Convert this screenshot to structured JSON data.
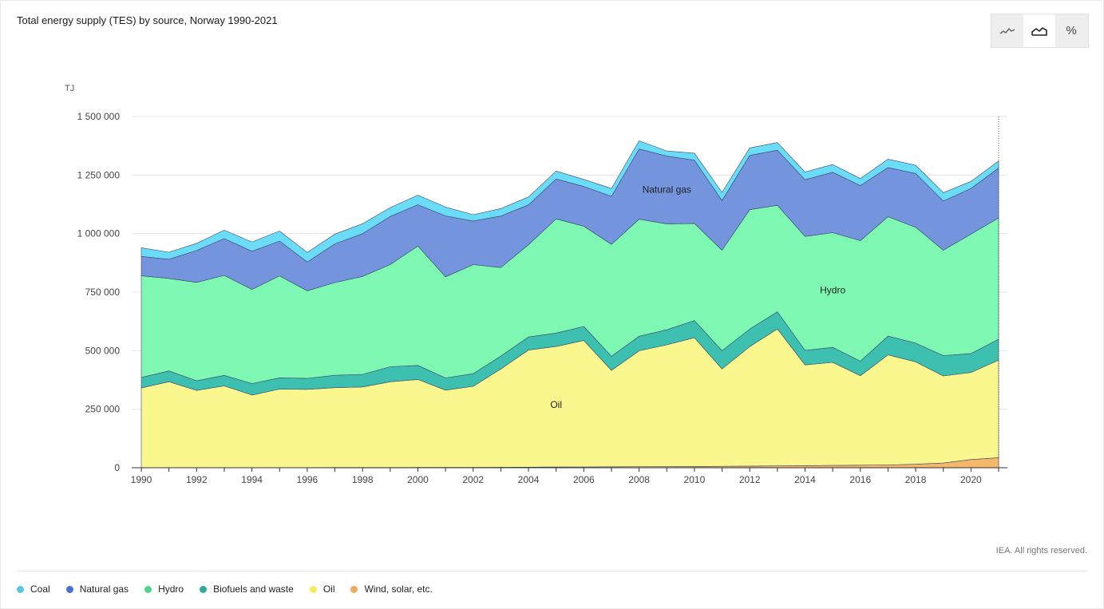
{
  "title": "Total energy supply (TES) by source, Norway 1990-2021",
  "credit": "IEA. All rights reserved.",
  "view_buttons": [
    {
      "icon": "line-chart-icon",
      "active": false
    },
    {
      "icon": "area-chart-icon",
      "active": true
    },
    {
      "icon": "percent-icon",
      "glyph": "%",
      "active": false
    }
  ],
  "chart_data": {
    "type": "area",
    "stacked": true,
    "title": "Total energy supply (TES) by source, Norway 1990-2021",
    "ylabel": "TJ",
    "xlabel": "",
    "ylim": [
      0,
      1500000
    ],
    "yticks": [
      0,
      250000,
      500000,
      750000,
      1000000,
      1250000,
      1500000
    ],
    "ytick_labels": [
      "0",
      "250 000",
      "500 000",
      "750 000",
      "1 000 000",
      "1 250 000",
      "1 500 000"
    ],
    "xticks": [
      1990,
      1992,
      1994,
      1996,
      1998,
      2000,
      2002,
      2004,
      2006,
      2008,
      2010,
      2012,
      2014,
      2016,
      2018,
      2020
    ],
    "x": [
      1990,
      1991,
      1992,
      1993,
      1994,
      1995,
      1996,
      1997,
      1998,
      1999,
      2000,
      2001,
      2002,
      2003,
      2004,
      2005,
      2006,
      2007,
      2008,
      2009,
      2010,
      2011,
      2012,
      2013,
      2014,
      2015,
      2016,
      2017,
      2018,
      2019,
      2020,
      2021
    ],
    "grid": true,
    "legend_position": "bottom",
    "series": [
      {
        "name": "Wind, solar, etc.",
        "color": "#f5b86a",
        "values": [
          500,
          500,
          500,
          600,
          600,
          700,
          800,
          900,
          1000,
          1100,
          1200,
          1400,
          1600,
          2000,
          2500,
          3000,
          3500,
          4000,
          4500,
          5000,
          5500,
          6000,
          7000,
          8000,
          9000,
          10000,
          11000,
          12000,
          15000,
          20000,
          35000,
          43000
        ]
      },
      {
        "name": "Oil",
        "color": "#faf78e",
        "values": [
          340000,
          367000,
          330000,
          349000,
          310000,
          335000,
          334000,
          341000,
          344000,
          366000,
          376000,
          330000,
          346000,
          420000,
          500000,
          515000,
          540000,
          412000,
          495000,
          520000,
          550000,
          416000,
          510000,
          585000,
          430000,
          440000,
          382000,
          470000,
          437000,
          372000,
          372000,
          417000
        ]
      },
      {
        "name": "Biofuels and waste",
        "color": "#3ec0b0",
        "values": [
          45000,
          46000,
          41000,
          45000,
          49000,
          48000,
          47000,
          53000,
          54000,
          64000,
          60000,
          52000,
          54000,
          55000,
          56000,
          57000,
          60000,
          60000,
          62000,
          64000,
          73000,
          78000,
          75000,
          73000,
          62000,
          64000,
          62000,
          80000,
          80000,
          87000,
          81000,
          89000
        ]
      },
      {
        "name": "Hydro",
        "color": "#7ef7b2",
        "values": [
          434000,
          395000,
          420000,
          427000,
          402000,
          436000,
          374000,
          396000,
          418000,
          437000,
          510000,
          432000,
          466000,
          378000,
          394000,
          488000,
          428000,
          478000,
          500000,
          452000,
          415000,
          429000,
          510000,
          455000,
          487000,
          490000,
          515000,
          510000,
          495000,
          450000,
          510000,
          518000
        ]
      },
      {
        "name": "Natural gas",
        "color": "#7495dd",
        "values": [
          83000,
          82000,
          136000,
          157000,
          163000,
          148000,
          123000,
          165000,
          183000,
          205000,
          176000,
          260000,
          186000,
          220000,
          170000,
          170000,
          170000,
          205000,
          300000,
          290000,
          270000,
          212000,
          232000,
          235000,
          242000,
          258000,
          235000,
          210000,
          230000,
          210000,
          195000,
          213000
        ]
      },
      {
        "name": "Coal",
        "color": "#6bdcf7",
        "values": [
          37000,
          30000,
          31000,
          36000,
          40000,
          43000,
          41000,
          42000,
          42000,
          38000,
          41000,
          38000,
          27000,
          32000,
          34000,
          34000,
          30000,
          34000,
          35000,
          22000,
          30000,
          35000,
          32000,
          33000,
          33000,
          33000,
          30000,
          36000,
          35000,
          36000,
          30000,
          30000
        ]
      }
    ],
    "annotations": [
      {
        "text": "Natural gas",
        "x": 2009,
        "y": 1175000
      },
      {
        "text": "Hydro",
        "x": 2015,
        "y": 745000
      },
      {
        "text": "Oil",
        "x": 2005,
        "y": 255000
      }
    ]
  },
  "legend": [
    {
      "label": "Coal",
      "color": "#58c6e6"
    },
    {
      "label": "Natural gas",
      "color": "#4a6fcf"
    },
    {
      "label": "Hydro",
      "color": "#4fd08b"
    },
    {
      "label": "Biofuels and waste",
      "color": "#2ea99c"
    },
    {
      "label": "Oil",
      "color": "#f3ec5e"
    },
    {
      "label": "Wind, solar, etc.",
      "color": "#f1a95a"
    }
  ]
}
